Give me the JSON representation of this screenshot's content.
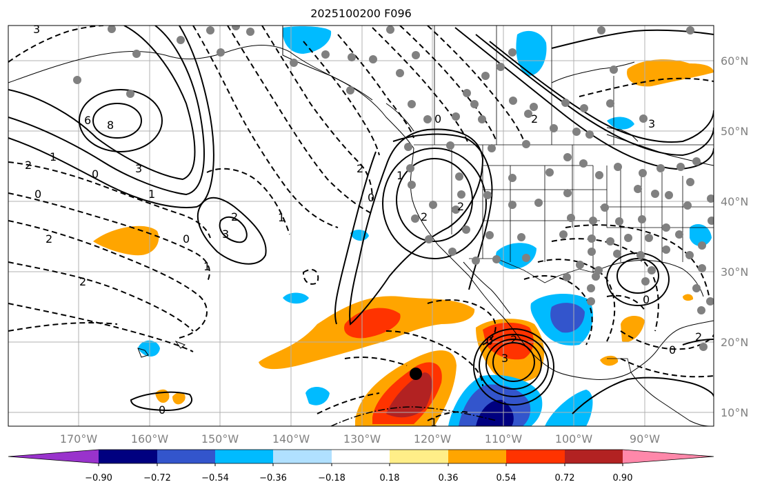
{
  "title": "2025100200 F096",
  "map": {
    "lat_labels": [
      "60°N",
      "50°N",
      "40°N",
      "30°N",
      "20°N",
      "10°N"
    ],
    "lon_labels": [
      "170°W",
      "160°W",
      "150°W",
      "140°W",
      "130°W",
      "120°W",
      "110°W",
      "100°W",
      "90°W"
    ],
    "contour_labels": [
      "8",
      "6",
      "3",
      "1",
      "0",
      "2",
      "1",
      "0",
      "2",
      "2",
      "1",
      "0",
      "1",
      "2",
      "3",
      "0",
      "2",
      "1",
      "0",
      "2",
      "2",
      "3",
      "0",
      "2",
      "3",
      "2",
      "0",
      "2",
      "0",
      "0",
      "3",
      "1"
    ],
    "storm_marker": "tropical-cyclone-center"
  },
  "colorbar": {
    "ticks": [
      "−0.90",
      "−0.72",
      "−0.54",
      "−0.36",
      "−0.18",
      "0.18",
      "0.36",
      "0.54",
      "0.72",
      "0.90"
    ],
    "colors": [
      "#9933cc",
      "#000080",
      "#3355cc",
      "#00bbff",
      "#b0e0ff",
      "#ffffff",
      "#ffee88",
      "#ffa500",
      "#ff3300",
      "#b22222",
      "#ff88aa"
    ]
  }
}
